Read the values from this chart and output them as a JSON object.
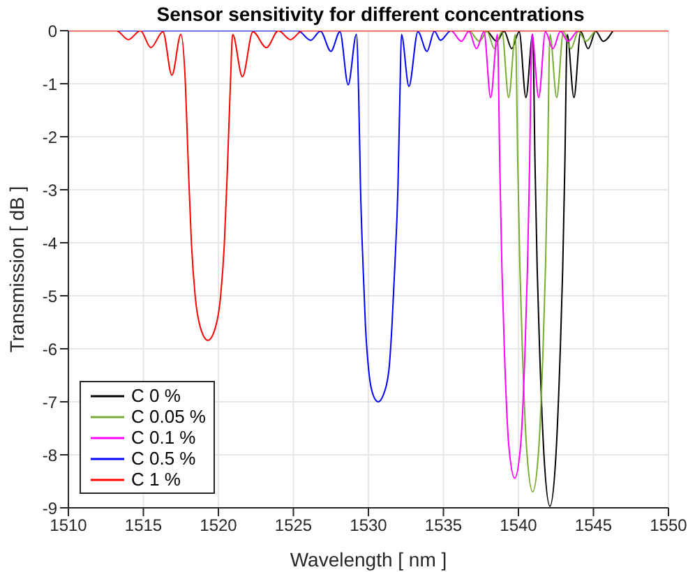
{
  "chart_data": {
    "type": "line",
    "title": "Sensor sensitivity for different concentrations",
    "xlabel": "Wavelength [ nm ]",
    "ylabel": "Transmission [ dB ]",
    "xlim": [
      1510,
      1550
    ],
    "xticks": [
      1510,
      1515,
      1520,
      1525,
      1530,
      1535,
      1540,
      1545,
      1550
    ],
    "ylim": [
      -9,
      0
    ],
    "yticks": [
      -9,
      -8,
      -7,
      -6,
      -5,
      -4,
      -3,
      -2,
      -1,
      0
    ],
    "grid": true,
    "legend": "bottom left",
    "marker": "none",
    "line_style": "solid",
    "series": [
      {
        "name": "C 0 %",
        "color": "#000000",
        "x": [
          1510,
          1537.85,
          1538.55,
          1539.05,
          1539.55,
          1540.05,
          1540.5,
          1540.95,
          1541.11,
          1541.25,
          1541.42,
          1541.7,
          1542.1,
          1542.5,
          1542.78,
          1542.95,
          1543.09,
          1543.25,
          1543.7,
          1544.15,
          1544.65,
          1545.15,
          1545.65,
          1546.3
        ],
        "values": [
          0,
          0,
          -0.2,
          -0.01,
          -0.34,
          -0.02,
          -1.26,
          -0.07,
          -2.58,
          -4.5,
          -6.09,
          -8.0,
          -8.97,
          -8.0,
          -6.09,
          -4.5,
          -2.58,
          -0.07,
          -1.26,
          -0.02,
          -0.34,
          -0.01,
          -0.2,
          0
        ]
      },
      {
        "name": "C 0.05 %",
        "color": "#77ac30",
        "x": [
          1510,
          1536.7,
          1537.4,
          1537.9,
          1538.4,
          1538.9,
          1539.35,
          1539.8,
          1539.96,
          1540.1,
          1540.27,
          1540.55,
          1540.95,
          1541.35,
          1541.63,
          1541.8,
          1541.94,
          1542.1,
          1542.55,
          1543.0,
          1543.5,
          1544.0,
          1544.5,
          1545.2,
          1550
        ],
        "values": [
          0,
          0,
          -0.2,
          -0.01,
          -0.34,
          -0.02,
          -1.26,
          -0.07,
          -2.58,
          -4.5,
          -6.09,
          -7.9,
          -8.7,
          -7.9,
          -6.09,
          -4.5,
          -2.58,
          -0.07,
          -1.26,
          -0.02,
          -0.34,
          -0.01,
          -0.2,
          0,
          0
        ]
      },
      {
        "name": "C 0.1 %",
        "color": "#ff00ff",
        "x": [
          1510,
          1535.5,
          1536.2,
          1536.7,
          1537.2,
          1537.7,
          1538.15,
          1538.6,
          1538.76,
          1538.9,
          1539.07,
          1539.35,
          1539.75,
          1540.15,
          1540.43,
          1540.6,
          1540.74,
          1540.9,
          1541.35,
          1541.8,
          1542.3,
          1542.8,
          1543.3,
          1544,
          1550
        ],
        "values": [
          0,
          0,
          -0.2,
          -0.01,
          -0.34,
          -0.02,
          -1.26,
          -0.07,
          -2.58,
          -4.5,
          -6.09,
          -7.8,
          -8.44,
          -7.8,
          -6.09,
          -4.5,
          -2.58,
          -0.07,
          -1.26,
          -0.02,
          -0.34,
          -0.01,
          -0.2,
          0,
          0
        ]
      },
      {
        "name": "C 0.5 %",
        "color": "#0000ff",
        "x": [
          1510,
          1525.3,
          1526.15,
          1526.8,
          1527.5,
          1528.1,
          1528.65,
          1529.2,
          1529.35,
          1529.47,
          1529.65,
          1529.8,
          1530.03,
          1530.35,
          1530.65,
          1530.95,
          1531.35,
          1531.57,
          1531.75,
          1531.97,
          1532.1,
          1532.2,
          1532.7,
          1533.3,
          1533.9,
          1534.4,
          1534.8,
          1535.5,
          1550
        ],
        "values": [
          0,
          0,
          -0.18,
          -0.01,
          -0.39,
          -0.02,
          -1.02,
          -0.07,
          -1.2,
          -2.93,
          -4.5,
          -5.56,
          -6.44,
          -6.9,
          -7.0,
          -6.9,
          -6.44,
          -5.56,
          -4.5,
          -2.93,
          -1.2,
          -0.07,
          -1.05,
          -0.02,
          -0.39,
          -0.01,
          -0.18,
          0,
          0
        ]
      },
      {
        "name": "C 1 %",
        "color": "#ff0000",
        "x": [
          1510,
          1513.2,
          1514.0,
          1514.8,
          1515.5,
          1516.3,
          1516.9,
          1517.5,
          1517.8,
          1518.0,
          1518.2,
          1518.45,
          1518.8,
          1519.3,
          1519.8,
          1520.15,
          1520.4,
          1520.6,
          1520.8,
          1520.95,
          1521.6,
          1522.3,
          1523.2,
          1524.0,
          1524.8,
          1525.6,
          1550
        ],
        "values": [
          0,
          0,
          -0.17,
          0,
          -0.32,
          -0.02,
          -0.84,
          -0.07,
          -1.0,
          -2.6,
          -4.0,
          -5.0,
          -5.6,
          -5.84,
          -5.6,
          -5.0,
          -4.0,
          -2.6,
          -1.0,
          -0.07,
          -0.87,
          -0.02,
          -0.32,
          0,
          -0.17,
          0,
          0
        ]
      }
    ]
  }
}
